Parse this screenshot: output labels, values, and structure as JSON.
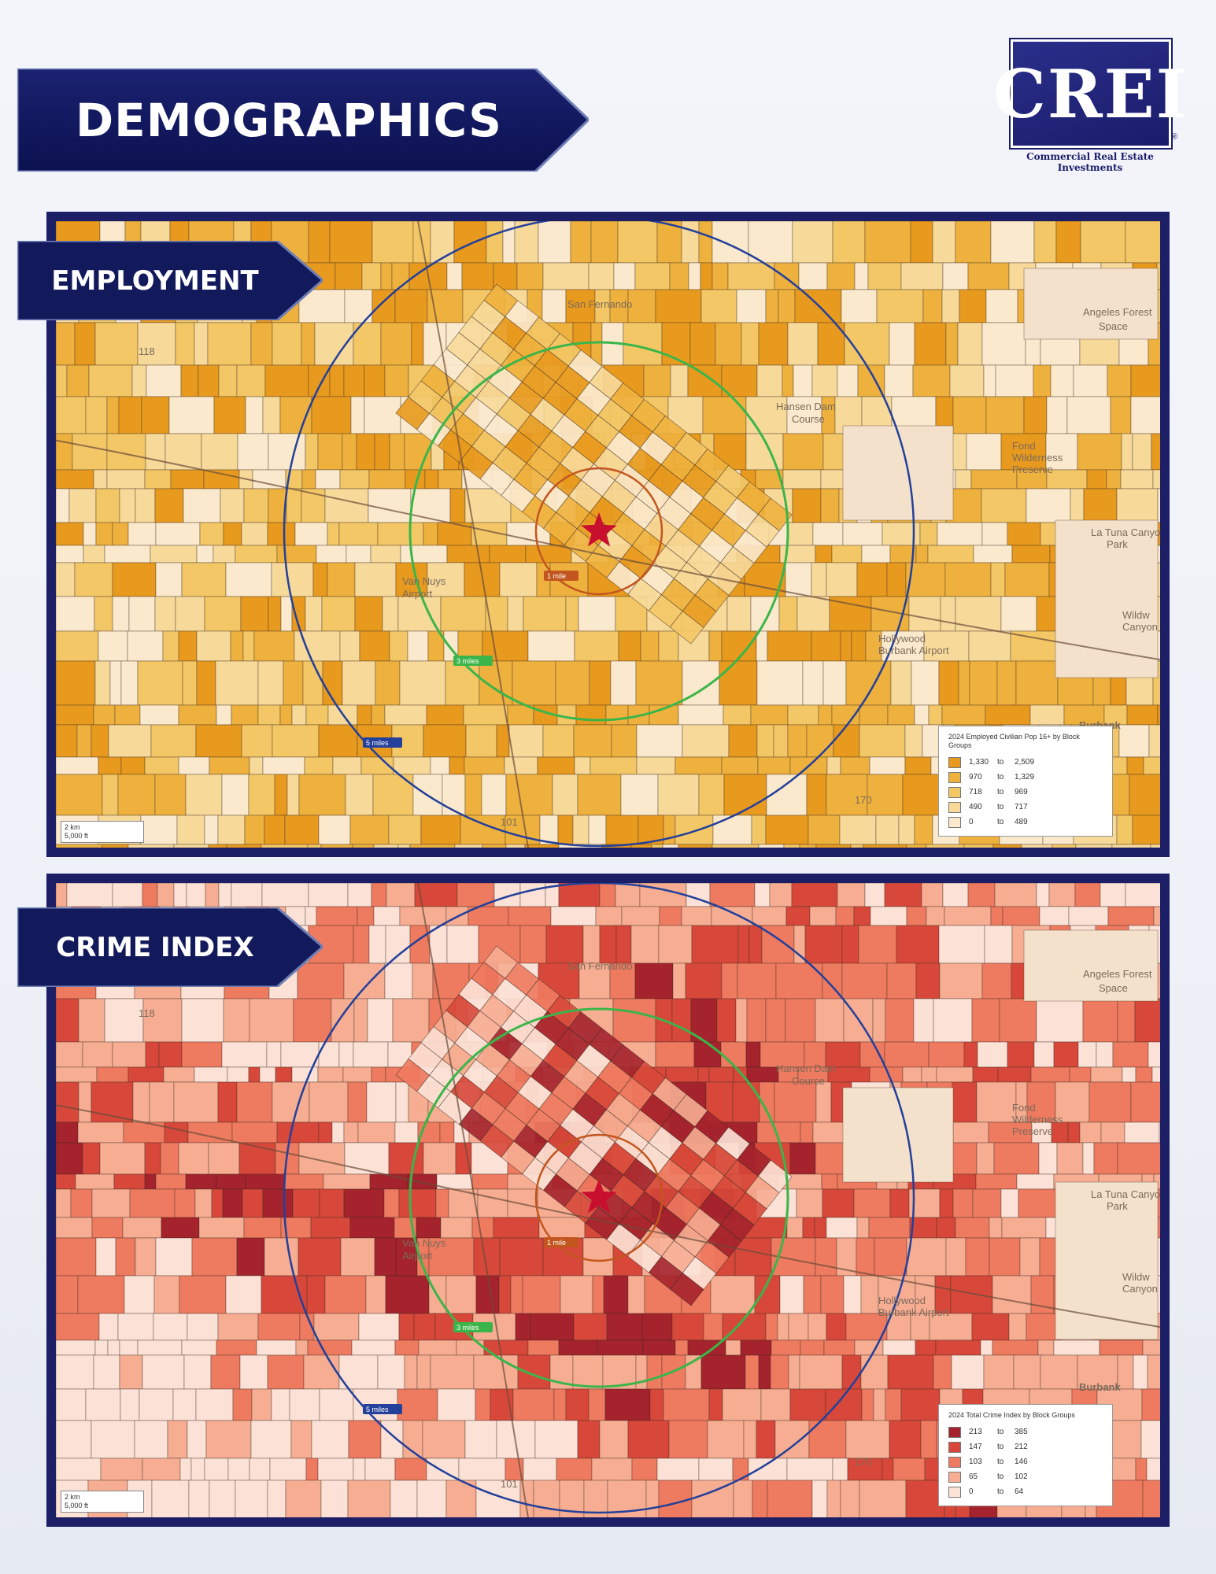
{
  "header": {
    "title": "DEMOGRAPHICS"
  },
  "logo": {
    "letters": "CREI",
    "registered": "®",
    "tagline": "Commercial Real Estate Investments"
  },
  "colors": {
    "navy": "#1c1f66",
    "banner": "#141a5e",
    "ring_1": "#c2561e",
    "ring_3": "#3bb54a",
    "ring_5": "#23409a",
    "star": "#c8102e"
  },
  "rings": {
    "one": "1 mile",
    "three": "3 miles",
    "five": "5 miles"
  },
  "places": [
    "San Fernando",
    "Angeles Forest",
    "Space",
    "Hansen Dam",
    "Course",
    "Fond",
    "Wilderness",
    "Preserve",
    "La Tuna Canyon",
    "Park",
    "Wildw",
    "Canyon",
    "Van Nuys",
    "Airport",
    "Hollywood",
    "Burbank Airport",
    "Burbank",
    "170",
    "118",
    "101"
  ],
  "scale": {
    "km": "2 km",
    "ft": "5,000 ft"
  },
  "maps": {
    "employment": {
      "tab_label": "EMPLOYMENT",
      "legend_title": "2024 Employed Civilian Pop 16+ by Block Groups",
      "legend": [
        {
          "min": "1,330",
          "max": "2,509",
          "color": "#e89a1e"
        },
        {
          "min": "970",
          "max": "1,329",
          "color": "#eeb13e"
        },
        {
          "min": "718",
          "max": "969",
          "color": "#f3c766"
        },
        {
          "min": "490",
          "max": "717",
          "color": "#f7d99a"
        },
        {
          "min": "0",
          "max": "489",
          "color": "#fbe9cd"
        }
      ]
    },
    "crime": {
      "tab_label": "CRIME INDEX",
      "legend_title": "2024 Total Crime Index by Block Groups",
      "legend": [
        {
          "min": "213",
          "max": "385",
          "color": "#a4232c"
        },
        {
          "min": "147",
          "max": "212",
          "color": "#d7483a"
        },
        {
          "min": "103",
          "max": "146",
          "color": "#ee7a5f"
        },
        {
          "min": "65",
          "max": "102",
          "color": "#f6ad92"
        },
        {
          "min": "0",
          "max": "64",
          "color": "#fce2d6"
        }
      ]
    }
  },
  "legend_to": "to"
}
